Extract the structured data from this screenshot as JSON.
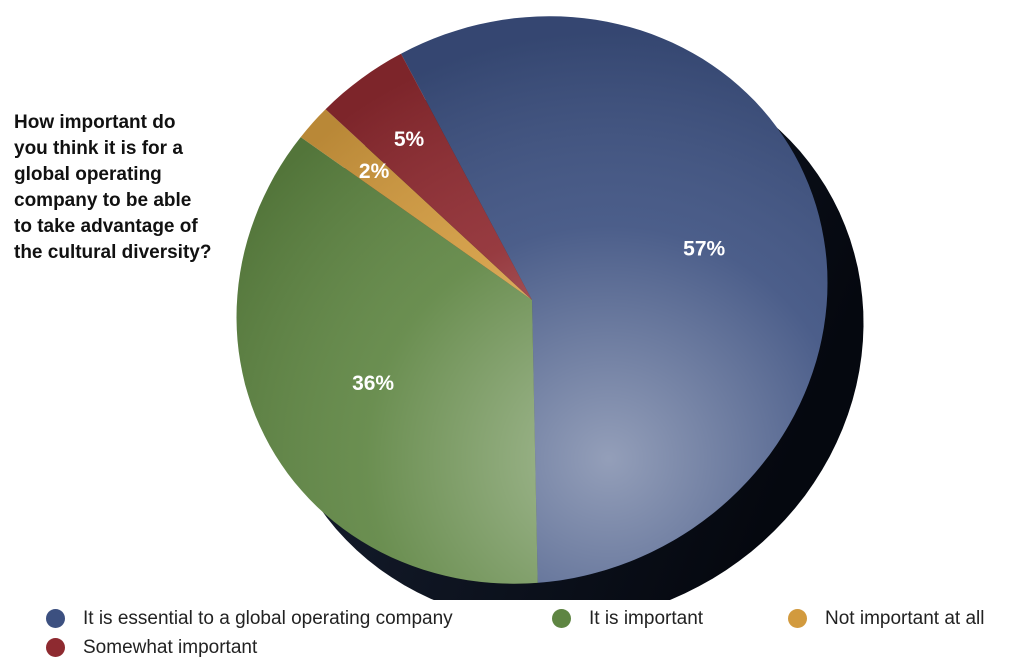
{
  "chart_data": {
    "type": "pie",
    "title": "How important do you think it is for a global operating company to be able to take advantage of the cultural diversity?",
    "slices": [
      {
        "name": "It is essential to a global operating company",
        "value": 57,
        "label": "57%",
        "color": "#3c5080"
      },
      {
        "name": "It is important",
        "value": 36,
        "label": "36%",
        "color": "#5e8542"
      },
      {
        "name": "Not important at all",
        "value": 2,
        "label": "2%",
        "color": "#d29a3e"
      },
      {
        "name": "Somewhat important",
        "value": 5,
        "label": "5%",
        "color": "#8e2a30"
      }
    ],
    "legend_position": "bottom",
    "style": "3d"
  }
}
